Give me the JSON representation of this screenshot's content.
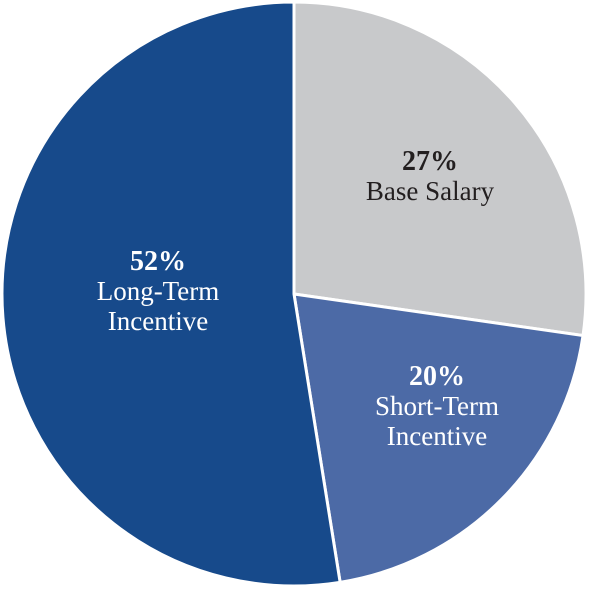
{
  "chart_data": {
    "type": "pie",
    "slices": [
      {
        "label_lines": [
          "Base Salary"
        ],
        "value": 27,
        "value_label": "27%",
        "color": "#c8c9cb",
        "text_color": "#231f20"
      },
      {
        "label_lines": [
          "Short-Term",
          "Incentive"
        ],
        "value": 20,
        "value_label": "20%",
        "color": "#4c6aa6",
        "text_color": "#ffffff"
      },
      {
        "label_lines": [
          "Long-Term",
          "Incentive"
        ],
        "value": 52,
        "value_label": "52%",
        "color": "#174a8b",
        "text_color": "#ffffff"
      }
    ]
  }
}
